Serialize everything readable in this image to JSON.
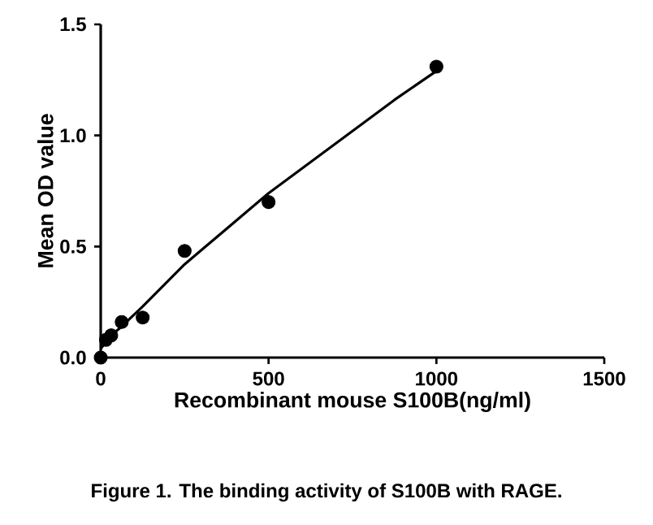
{
  "chart_data": {
    "type": "scatter",
    "xlabel": "Recombinant mouse S100B(ng/ml)",
    "ylabel": "Mean OD value",
    "annotations": [
      "Figure 1. The binding activity of S100B with RAGE."
    ],
    "series": [
      {
        "color": "#000000",
        "marker": "circle",
        "x": [
          0,
          15.6,
          31.25,
          62.5,
          125,
          250,
          500,
          1000
        ],
        "values": [
          0,
          0.08,
          0.1,
          0.16,
          0.18,
          0.48,
          0.7,
          1.31
        ]
      },
      {
        "type": "line",
        "color": "#000000",
        "marker": "none",
        "line_style": "solid",
        "x": [
          0,
          31.25,
          62.5,
          125,
          250,
          375,
          500,
          625,
          750,
          875,
          1000
        ],
        "values": [
          0.04,
          0.1,
          0.14,
          0.23,
          0.42,
          0.58,
          0.74,
          0.88,
          1.02,
          1.16,
          1.29
        ]
      }
    ],
    "xlim": [
      0,
      1500
    ],
    "xticks": [
      0,
      500,
      1000,
      1500
    ],
    "ylim": [
      0,
      1.5
    ],
    "yticks": [
      {
        "value": 0,
        "label": "0.0"
      },
      {
        "value": 0.5,
        "label": "0.5"
      },
      {
        "value": 1.0,
        "label": "1.0"
      },
      {
        "value": 1.5,
        "label": "1.5"
      }
    ],
    "grid": false
  }
}
